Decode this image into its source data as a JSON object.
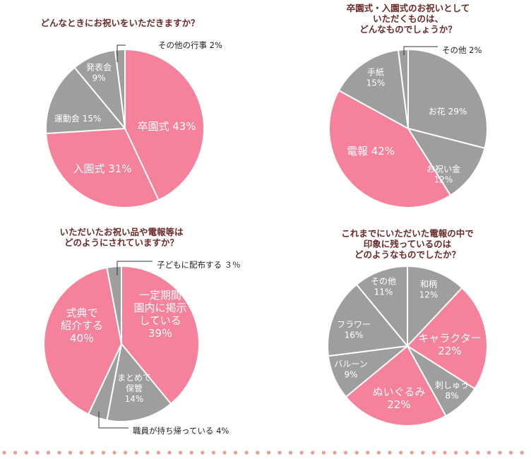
{
  "colors": {
    "pink": "#f5819b",
    "gray": "#9e9e9e",
    "title": "#6b2a2a",
    "stroke": "#ffffff",
    "dots": "#e8a08a"
  },
  "chart_data": [
    {
      "type": "pie",
      "title_lines": [
        "どんなときにお祝いをいただきますか？"
      ],
      "slices": [
        {
          "label_lines": [
            "卒園式 43%"
          ],
          "value": 43,
          "color": "pink"
        },
        {
          "label_lines": [
            "入園式 31%"
          ],
          "value": 31,
          "color": "pink"
        },
        {
          "label_lines": [
            "運動会 15%"
          ],
          "value": 15,
          "color": "gray"
        },
        {
          "label_lines": [
            "発表会",
            "9%"
          ],
          "value": 9,
          "color": "gray"
        },
        {
          "label_lines": [
            "その他の行事 2%"
          ],
          "value": 2,
          "color": "gray"
        }
      ]
    },
    {
      "type": "pie",
      "title_lines": [
        "卒園式・入園式のお祝いとして",
        "いただくものは、",
        "どんなものでしょうか？"
      ],
      "slices": [
        {
          "label_lines": [
            "お花 29%"
          ],
          "value": 29,
          "color": "gray"
        },
        {
          "label_lines": [
            "お祝い金",
            "12%"
          ],
          "value": 12,
          "color": "gray"
        },
        {
          "label_lines": [
            "電報 42%"
          ],
          "value": 42,
          "color": "pink"
        },
        {
          "label_lines": [
            "手紙",
            "15%"
          ],
          "value": 15,
          "color": "gray"
        },
        {
          "label_lines": [
            "その他 2%"
          ],
          "value": 2,
          "color": "gray"
        }
      ]
    },
    {
      "type": "pie",
      "title_lines": [
        "いただいたお祝い品や電報等は",
        "どのようにされていますか？"
      ],
      "slices": [
        {
          "label_lines": [
            "一定期間",
            "園内に掲示",
            "している",
            "39％"
          ],
          "value": 39,
          "color": "pink"
        },
        {
          "label_lines": [
            "まとめて",
            "保管",
            "14%"
          ],
          "value": 14,
          "color": "gray"
        },
        {
          "label_lines": [
            "職員が持ち帰っている 4%"
          ],
          "value": 4,
          "color": "gray"
        },
        {
          "label_lines": [
            "式典で",
            "紹介する",
            "40％"
          ],
          "value": 40,
          "color": "pink"
        },
        {
          "label_lines": [
            "子どもに配布する ３％"
          ],
          "value": 3,
          "color": "gray"
        }
      ]
    },
    {
      "type": "pie",
      "title_lines": [
        "これまでにいただいた電報の中で",
        "印象に残っているのは",
        "どのようなものでしたか？"
      ],
      "slices": [
        {
          "label_lines": [
            "和柄",
            "12%"
          ],
          "value": 12,
          "color": "gray"
        },
        {
          "label_lines": [
            "キャラクター",
            "22%"
          ],
          "value": 22,
          "color": "pink"
        },
        {
          "label_lines": [
            "刺しゅう",
            "8%"
          ],
          "value": 8,
          "color": "gray"
        },
        {
          "label_lines": [
            "ぬいぐるみ",
            "22%"
          ],
          "value": 22,
          "color": "pink"
        },
        {
          "label_lines": [
            "バルーン",
            "9%"
          ],
          "value": 9,
          "color": "gray"
        },
        {
          "label_lines": [
            "フラワー",
            "16%"
          ],
          "value": 16,
          "color": "gray"
        },
        {
          "label_lines": [
            "その他",
            "11%"
          ],
          "value": 11,
          "color": "gray"
        }
      ]
    }
  ]
}
